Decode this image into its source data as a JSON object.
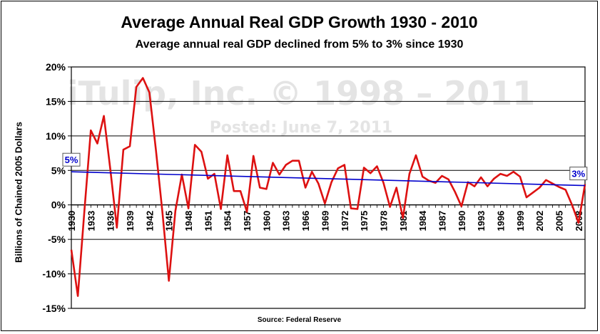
{
  "chart_data": {
    "type": "line",
    "title": "Average Annual Real GDP Growth 1930 - 2010",
    "subtitle": "Average annual real GDP declined from 5% to 3% since 1930",
    "ylabel": "Billions of Chained 2005 Dollars",
    "source": "Source: Federal Reserve",
    "watermark": [
      "iTulip, Inc. © 1998 – 2011",
      "Posted: June 7, 2011"
    ],
    "ylim": [
      -15,
      20
    ],
    "yticks": [
      -15,
      -10,
      -5,
      0,
      5,
      10,
      15,
      20
    ],
    "ytick_labels": [
      "-15%",
      "-10%",
      "-5%",
      "0%",
      "5%",
      "10%",
      "15%",
      "20%"
    ],
    "xlim": [
      1930,
      2009
    ],
    "xticks": [
      "1930",
      "1933",
      "1936",
      "1939",
      "1942",
      "1945",
      "1948",
      "1951",
      "1954",
      "1957",
      "1960",
      "1963",
      "1966",
      "1969",
      "1972",
      "1975",
      "1978",
      "1981",
      "1984",
      "1987",
      "1990",
      "1993",
      "1996",
      "1999",
      "2002",
      "2005",
      "2008"
    ],
    "grid": true,
    "series": [
      {
        "color": "#dd1111",
        "x": [
          1930,
          1931,
          1932,
          1933,
          1934,
          1935,
          1936,
          1937,
          1938,
          1939,
          1940,
          1941,
          1942,
          1943,
          1944,
          1945,
          1946,
          1947,
          1948,
          1949,
          1950,
          1951,
          1952,
          1953,
          1954,
          1955,
          1956,
          1957,
          1958,
          1959,
          1960,
          1961,
          1962,
          1963,
          1964,
          1965,
          1966,
          1967,
          1968,
          1969,
          1970,
          1971,
          1972,
          1973,
          1974,
          1975,
          1976,
          1977,
          1978,
          1979,
          1980,
          1981,
          1982,
          1983,
          1984,
          1985,
          1986,
          1987,
          1988,
          1989,
          1990,
          1991,
          1992,
          1993,
          1994,
          1995,
          1996,
          1997,
          1998,
          1999,
          2000,
          2001,
          2002,
          2003,
          2004,
          2005,
          2006,
          2007,
          2008,
          2009
        ],
        "values": [
          -6.5,
          -13.2,
          -1.0,
          10.8,
          8.9,
          12.9,
          5.1,
          -3.3,
          8.0,
          8.5,
          17.1,
          18.4,
          16.3,
          8.0,
          -1.0,
          -11.0,
          -0.9,
          4.4,
          -0.5,
          8.7,
          7.7,
          3.8,
          4.5,
          -0.6,
          7.2,
          2.0,
          2.0,
          -1.0,
          7.1,
          2.5,
          2.3,
          6.1,
          4.4,
          5.8,
          6.4,
          6.4,
          2.5,
          4.8,
          3.1,
          0.2,
          3.3,
          5.3,
          5.8,
          -0.5,
          -0.6,
          5.4,
          4.6,
          5.6,
          3.2,
          -0.3,
          2.5,
          -1.9,
          4.5,
          7.2,
          4.1,
          3.5,
          3.2,
          4.2,
          3.7,
          1.9,
          -0.2,
          3.3,
          2.7,
          4.0,
          2.7,
          3.8,
          4.5,
          4.2,
          4.8,
          4.1,
          1.1,
          1.8,
          2.5,
          3.6,
          3.1,
          2.6,
          2.2,
          0.0,
          -2.6,
          3.0
        ]
      },
      {
        "color": "#0000cc",
        "x": [
          1930,
          2009
        ],
        "values": [
          4.8,
          2.8
        ]
      }
    ],
    "annotations": [
      {
        "label": "5%",
        "x": 1930,
        "y": 4.8,
        "boxed": true
      },
      {
        "label": "3%",
        "x": 2007,
        "y": 2.8,
        "boxed": true
      }
    ]
  }
}
